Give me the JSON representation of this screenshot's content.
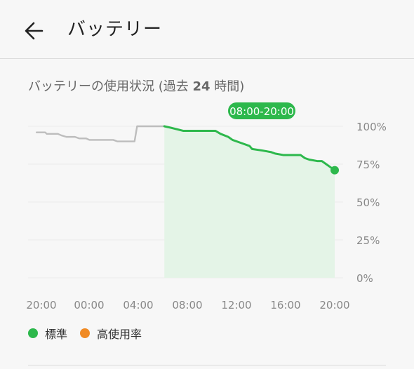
{
  "header": {
    "title": "バッテリー",
    "back_icon": "arrow-left-icon"
  },
  "section": {
    "title_prefix": "バッテリーの使用状況 (過去 ",
    "title_bold": "24",
    "title_suffix": " 時間)"
  },
  "chart_data": {
    "type": "line",
    "range_badge": "08:00-20:00",
    "x_ticks": [
      "20:00",
      "00:00",
      "04:00",
      "08:00",
      "12:00",
      "16:00",
      "20:00"
    ],
    "x_tick_hours": [
      0,
      4,
      8,
      12,
      16,
      20,
      24
    ],
    "y_ticks": [
      "100%",
      "75%",
      "50%",
      "25%",
      "0%"
    ],
    "y_tick_values": [
      100,
      75,
      50,
      25,
      0
    ],
    "ylim": [
      0,
      100
    ],
    "xlim_hours": [
      0,
      24
    ],
    "highlight_start_hour": 12,
    "grid": true,
    "series": [
      {
        "color": "#bdbdbd",
        "points": [
          [
            1.0,
            96
          ],
          [
            2.0,
            96
          ],
          [
            2.2,
            95
          ],
          [
            3.5,
            95
          ],
          [
            3.9,
            94
          ],
          [
            4.5,
            93
          ],
          [
            5.5,
            93
          ],
          [
            6.0,
            92
          ],
          [
            6.8,
            92
          ],
          [
            7.2,
            91
          ],
          [
            10.0,
            91
          ],
          [
            10.5,
            90
          ],
          [
            12.0,
            90
          ],
          [
            12.5,
            90
          ],
          [
            12.8,
            100
          ],
          [
            16.0,
            100
          ]
        ]
      },
      {
        "color": "#2db84c",
        "filled": true,
        "points": [
          [
            16.0,
            100
          ],
          [
            16.8,
            99
          ],
          [
            18.2,
            97
          ],
          [
            20.0,
            97
          ],
          [
            22.0,
            97
          ],
          [
            22.6,
            95
          ],
          [
            23.5,
            93
          ],
          [
            24.0,
            91
          ],
          [
            25.0,
            89
          ],
          [
            26.0,
            87
          ],
          [
            26.3,
            85
          ],
          [
            27.5,
            84
          ],
          [
            28.5,
            83
          ],
          [
            29.0,
            82
          ],
          [
            30.0,
            81
          ],
          [
            31.0,
            81
          ],
          [
            32.0,
            81
          ],
          [
            32.5,
            79
          ],
          [
            33.0,
            78
          ],
          [
            34.0,
            77
          ],
          [
            34.5,
            77
          ],
          [
            35.0,
            75
          ],
          [
            35.5,
            73
          ],
          [
            36.0,
            71
          ]
        ]
      }
    ],
    "end_point": [
      36.0,
      71
    ]
  },
  "legend": [
    {
      "label": "標準",
      "color": "#2db84c"
    },
    {
      "label": "高使用率",
      "color": "#f08a24"
    }
  ]
}
